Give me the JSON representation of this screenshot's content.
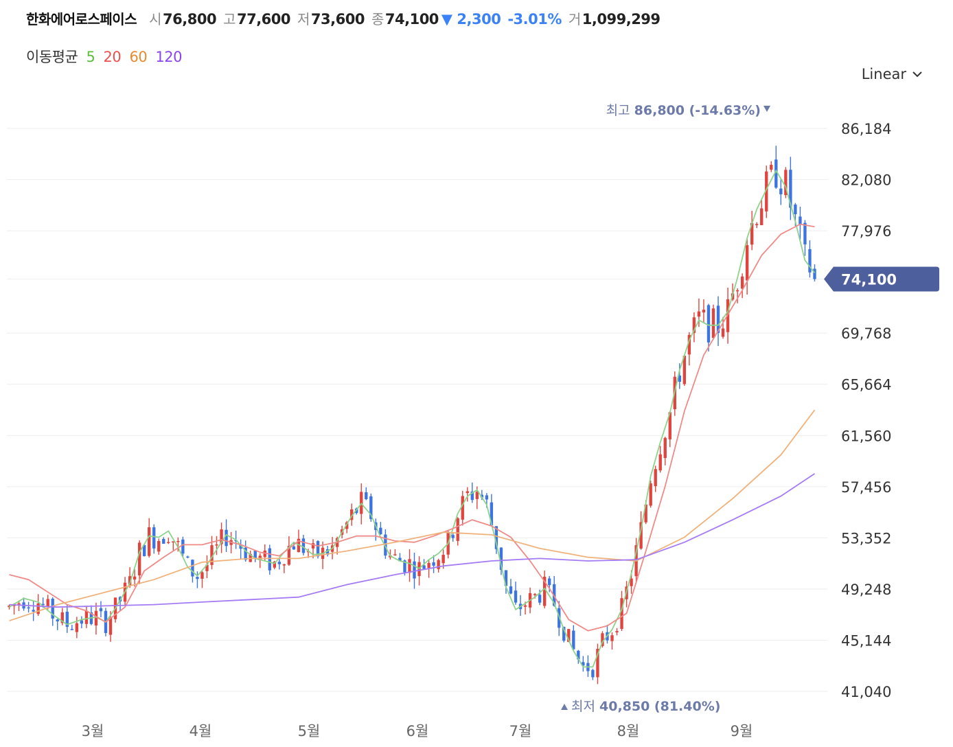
{
  "stock": {
    "name": "한화에어로스페이스",
    "open_label": "시",
    "open": "76,800",
    "high_label": "고",
    "high": "77,600",
    "low_label": "저",
    "low": "73,600",
    "close_label": "종",
    "close": "74,100",
    "change": "▼ 2,300",
    "change_pct": "-3.01%",
    "volume_label": "거",
    "volume": "1,099,299"
  },
  "moving_average": {
    "title": "이동평균",
    "periods": [
      {
        "label": "5",
        "color": "#5cbf3a"
      },
      {
        "label": "20",
        "color": "#e8524f"
      },
      {
        "label": "60",
        "color": "#e88a2f"
      },
      {
        "label": "120",
        "color": "#8b45f0"
      }
    ]
  },
  "scale_selector": {
    "value": "Linear",
    "icon": "chevron-down-icon"
  },
  "chart_data": {
    "type": "candlestick",
    "colors": {
      "up": "#e0443e",
      "down": "#3d74e0",
      "ma5": "#8dd38a",
      "ma20": "#ef8a87",
      "ma60": "#f0b27a",
      "ma120": "#a57bf5",
      "price_tag": "#4e5f9e"
    },
    "y_ticks": [
      "86,184",
      "82,080",
      "77,976",
      "74,100",
      "69,768",
      "65,664",
      "61,560",
      "57,456",
      "53,352",
      "49,248",
      "45,144",
      "41,040"
    ],
    "y_tick_values": [
      86184,
      82080,
      77976,
      74100,
      69768,
      65664,
      61560,
      57456,
      53352,
      49248,
      45144,
      41040
    ],
    "ylim": [
      41040,
      86184
    ],
    "x_ticks": [
      "3월",
      "4월",
      "5월",
      "6월",
      "7월",
      "8월",
      "9월"
    ],
    "current_price": "74,100",
    "high_annotation": {
      "label": "최고",
      "value": "86,800 (-14.63%)",
      "price": 86800
    },
    "low_annotation": {
      "label": "최저",
      "value": "40,850 (81.40%)",
      "price": 40850
    },
    "ma5": [
      [
        0,
        47800
      ],
      [
        3,
        48500
      ],
      [
        6,
        48200
      ],
      [
        9,
        47200
      ],
      [
        12,
        46400
      ],
      [
        15,
        46800
      ],
      [
        18,
        47000
      ],
      [
        20,
        46600
      ],
      [
        22,
        47700
      ],
      [
        25,
        49700
      ],
      [
        27,
        52200
      ],
      [
        29,
        53500
      ],
      [
        31,
        53400
      ],
      [
        33,
        53900
      ],
      [
        35,
        52600
      ],
      [
        37,
        51000
      ],
      [
        39,
        50300
      ],
      [
        41,
        51200
      ],
      [
        43,
        52400
      ],
      [
        45,
        53600
      ],
      [
        47,
        53200
      ],
      [
        49,
        52300
      ],
      [
        51,
        51700
      ],
      [
        53,
        51500
      ],
      [
        55,
        51300
      ],
      [
        57,
        52200
      ],
      [
        59,
        53000
      ],
      [
        61,
        52600
      ],
      [
        63,
        52000
      ],
      [
        65,
        52100
      ],
      [
        67,
        52500
      ],
      [
        69,
        53800
      ],
      [
        71,
        55100
      ],
      [
        73,
        56100
      ],
      [
        75,
        55200
      ],
      [
        77,
        53400
      ],
      [
        79,
        51900
      ],
      [
        81,
        51500
      ],
      [
        83,
        51300
      ],
      [
        85,
        50900
      ],
      [
        87,
        51600
      ],
      [
        89,
        52100
      ],
      [
        91,
        52900
      ],
      [
        93,
        55300
      ],
      [
        95,
        56700
      ],
      [
        97,
        57200
      ],
      [
        99,
        56000
      ],
      [
        101,
        52900
      ],
      [
        103,
        49400
      ],
      [
        105,
        47600
      ],
      [
        107,
        48100
      ],
      [
        109,
        48600
      ],
      [
        111,
        49300
      ],
      [
        113,
        48100
      ],
      [
        115,
        46000
      ],
      [
        117,
        44300
      ],
      [
        119,
        43000
      ],
      [
        121,
        43000
      ],
      [
        123,
        45000
      ],
      [
        125,
        46000
      ],
      [
        127,
        47600
      ],
      [
        129,
        50500
      ],
      [
        131,
        54000
      ],
      [
        133,
        58300
      ],
      [
        135,
        61000
      ],
      [
        137,
        63400
      ],
      [
        139,
        66800
      ],
      [
        141,
        69200
      ],
      [
        143,
        70800
      ],
      [
        145,
        70400
      ],
      [
        147,
        70400
      ],
      [
        149,
        71500
      ],
      [
        151,
        74200
      ],
      [
        153,
        77400
      ],
      [
        155,
        79700
      ],
      [
        157,
        81300
      ],
      [
        159,
        82800
      ],
      [
        161,
        81500
      ],
      [
        163,
        78700
      ],
      [
        165,
        75600
      ],
      [
        167,
        74600
      ]
    ],
    "ma20": [
      [
        0,
        50400
      ],
      [
        4,
        50000
      ],
      [
        8,
        49000
      ],
      [
        12,
        48000
      ],
      [
        16,
        47500
      ],
      [
        20,
        46600
      ],
      [
        24,
        47800
      ],
      [
        28,
        50700
      ],
      [
        32,
        51800
      ],
      [
        36,
        52800
      ],
      [
        40,
        52800
      ],
      [
        44,
        53200
      ],
      [
        48,
        52800
      ],
      [
        52,
        52200
      ],
      [
        56,
        51900
      ],
      [
        60,
        53100
      ],
      [
        64,
        52700
      ],
      [
        68,
        53000
      ],
      [
        72,
        53500
      ],
      [
        76,
        53500
      ],
      [
        80,
        53100
      ],
      [
        84,
        53000
      ],
      [
        88,
        53500
      ],
      [
        92,
        54100
      ],
      [
        96,
        54800
      ],
      [
        100,
        54300
      ],
      [
        104,
        53400
      ],
      [
        108,
        51500
      ],
      [
        112,
        49300
      ],
      [
        116,
        46800
      ],
      [
        120,
        45900
      ],
      [
        124,
        46300
      ],
      [
        128,
        47300
      ],
      [
        132,
        52300
      ],
      [
        136,
        57500
      ],
      [
        140,
        63500
      ],
      [
        144,
        68000
      ],
      [
        148,
        70600
      ],
      [
        152,
        73200
      ],
      [
        156,
        76000
      ],
      [
        160,
        77700
      ],
      [
        164,
        78500
      ],
      [
        167,
        78300
      ]
    ],
    "ma60": [
      [
        0,
        46700
      ],
      [
        10,
        48000
      ],
      [
        20,
        49000
      ],
      [
        30,
        50000
      ],
      [
        40,
        51400
      ],
      [
        50,
        51700
      ],
      [
        60,
        51700
      ],
      [
        70,
        52300
      ],
      [
        80,
        53000
      ],
      [
        90,
        53800
      ],
      [
        100,
        53600
      ],
      [
        110,
        52500
      ],
      [
        120,
        51800
      ],
      [
        130,
        51500
      ],
      [
        140,
        53400
      ],
      [
        150,
        56500
      ],
      [
        160,
        60000
      ],
      [
        167,
        63600
      ]
    ],
    "ma120": [
      [
        0,
        48000
      ],
      [
        10,
        47800
      ],
      [
        20,
        47900
      ],
      [
        30,
        48000
      ],
      [
        40,
        48200
      ],
      [
        50,
        48400
      ],
      [
        60,
        48600
      ],
      [
        70,
        49600
      ],
      [
        80,
        50400
      ],
      [
        90,
        51100
      ],
      [
        100,
        51500
      ],
      [
        110,
        51700
      ],
      [
        120,
        51500
      ],
      [
        130,
        51600
      ],
      [
        140,
        53000
      ],
      [
        150,
        54800
      ],
      [
        160,
        56700
      ],
      [
        167,
        58500
      ]
    ]
  }
}
